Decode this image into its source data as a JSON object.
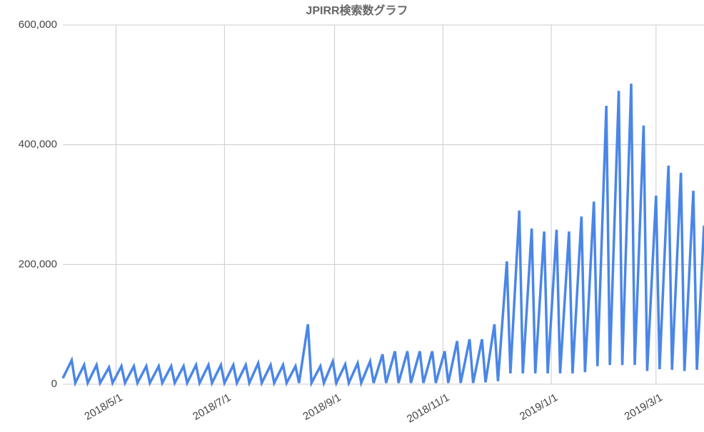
{
  "chart_data": {
    "type": "line",
    "title": "JPIRR検索数グラフ",
    "color": "#4a86e8",
    "grid": true,
    "x": [
      "2018/4/1",
      "2018/4/6",
      "2018/4/8",
      "2018/4/13",
      "2018/4/15",
      "2018/4/20",
      "2018/4/22",
      "2018/4/27",
      "2018/4/29",
      "2018/5/4",
      "2018/5/6",
      "2018/5/11",
      "2018/5/13",
      "2018/5/18",
      "2018/5/20",
      "2018/5/25",
      "2018/5/27",
      "2018/6/1",
      "2018/6/3",
      "2018/6/8",
      "2018/6/10",
      "2018/6/15",
      "2018/6/17",
      "2018/6/22",
      "2018/6/24",
      "2018/6/29",
      "2018/7/1",
      "2018/7/6",
      "2018/7/8",
      "2018/7/13",
      "2018/7/15",
      "2018/7/20",
      "2018/7/22",
      "2018/7/27",
      "2018/7/29",
      "2018/8/3",
      "2018/8/5",
      "2018/8/10",
      "2018/8/12",
      "2018/8/17",
      "2018/8/19",
      "2018/8/24",
      "2018/8/26",
      "2018/8/31",
      "2018/9/2",
      "2018/9/7",
      "2018/9/9",
      "2018/9/14",
      "2018/9/16",
      "2018/9/21",
      "2018/9/23",
      "2018/9/28",
      "2018/9/30",
      "2018/10/5",
      "2018/10/7",
      "2018/10/12",
      "2018/10/14",
      "2018/10/19",
      "2018/10/21",
      "2018/10/26",
      "2018/10/28",
      "2018/11/2",
      "2018/11/4",
      "2018/11/9",
      "2018/11/11",
      "2018/11/16",
      "2018/11/18",
      "2018/11/23",
      "2018/11/25",
      "2018/11/30",
      "2018/12/2",
      "2018/12/7",
      "2018/12/9",
      "2018/12/14",
      "2018/12/16",
      "2018/12/21",
      "2018/12/23",
      "2018/12/28",
      "2018/12/30",
      "2019/1/4",
      "2019/1/6",
      "2019/1/11",
      "2019/1/13",
      "2019/1/18",
      "2019/1/20",
      "2019/1/25",
      "2019/1/27",
      "2019/2/1",
      "2019/2/3",
      "2019/2/8",
      "2019/2/10",
      "2019/2/15",
      "2019/2/17",
      "2019/2/22",
      "2019/2/24",
      "2019/3/1",
      "2019/3/3",
      "2019/3/8",
      "2019/3/10",
      "2019/3/15",
      "2019/3/17",
      "2019/3/22",
      "2019/3/24",
      "2019/3/28"
    ],
    "values": [
      10000,
      40000,
      2000,
      32000,
      2000,
      32000,
      2000,
      28000,
      2000,
      30000,
      2000,
      30000,
      2000,
      30000,
      2000,
      30000,
      2000,
      30000,
      2000,
      30000,
      2000,
      32000,
      2000,
      32000,
      2000,
      32000,
      2000,
      32000,
      2000,
      32000,
      2000,
      35000,
      2000,
      32000,
      2000,
      32000,
      2000,
      30000,
      2000,
      100000,
      2000,
      30000,
      2000,
      38000,
      2000,
      33000,
      2000,
      35000,
      2000,
      38000,
      2000,
      50000,
      2000,
      55000,
      2000,
      55000,
      2000,
      55000,
      2000,
      55000,
      2000,
      55000,
      2000,
      72000,
      2000,
      75000,
      2000,
      75000,
      3000,
      100000,
      5000,
      205000,
      18000,
      290000,
      18000,
      260000,
      18000,
      255000,
      18000,
      258000,
      18000,
      255000,
      18000,
      280000,
      20000,
      305000,
      30000,
      465000,
      32000,
      490000,
      32000,
      502000,
      32000,
      432000,
      22000,
      315000,
      25000,
      365000,
      24000,
      353000,
      22000,
      323000,
      24000,
      265000
    ],
    "xlim": [
      "2018/4/1",
      "2019/3/28"
    ],
    "xticks": [
      "2018/5/1",
      "2018/7/1",
      "2018/9/1",
      "2018/11/1",
      "2019/1/1",
      "2019/3/1"
    ],
    "ylim": [
      0,
      600000
    ],
    "yticks": [
      0,
      {
        "value": 200000,
        "label": "200,000"
      },
      {
        "value": 400000,
        "label": "400,000"
      },
      {
        "value": 600000,
        "label": "600,000"
      }
    ]
  }
}
